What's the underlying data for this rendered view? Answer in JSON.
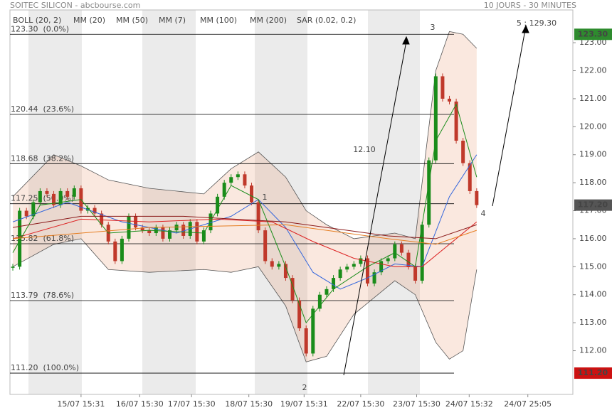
{
  "chart_data": {
    "type": "candlestick",
    "title": "SOITEC SILICON - abcbourse.com",
    "subtitle": "10 JOURS - 30 MINUTES",
    "xlim": [
      -0.42,
      82.1
    ],
    "ylim": [
      110.44,
      124.17
    ],
    "yticks": [
      {
        "value": 112,
        "label": "112.00"
      },
      {
        "value": 113,
        "label": "113.00"
      },
      {
        "value": 114,
        "label": "114.00"
      },
      {
        "value": 115,
        "label": "115.00"
      },
      {
        "value": 116,
        "label": "116.00"
      },
      {
        "value": 117,
        "label": "117.00"
      },
      {
        "value": 118,
        "label": "118.00"
      },
      {
        "value": 119,
        "label": "119.00"
      },
      {
        "value": 120,
        "label": "120.00"
      },
      {
        "value": 121,
        "label": "121.00"
      },
      {
        "value": 122,
        "label": "122.00"
      },
      {
        "value": 123,
        "label": "123.00"
      }
    ],
    "xticks": [
      {
        "value": 10,
        "label": "15/07 15:31"
      },
      {
        "value": 18.6,
        "label": "16/07 15:30"
      },
      {
        "value": 26.2,
        "label": "17/07 15:30"
      },
      {
        "value": 34.6,
        "label": "18/07 15:30"
      },
      {
        "value": 42.7,
        "label": "19/07 15:31"
      },
      {
        "value": 51,
        "label": "22/07 15:30"
      },
      {
        "value": 59.2,
        "label": "23/07 15:30"
      },
      {
        "value": 66.9,
        "label": "24/07 15:32"
      },
      {
        "value": 75.5,
        "label": "24/07 25:05"
      }
    ],
    "up_color": "#1a8c1a",
    "down_color": "#c0392b",
    "closes": [
      115.0,
      117.0,
      116.8,
      117.3,
      117.7,
      117.6,
      117.2,
      117.7,
      117.5,
      117.8,
      117.0,
      117.1,
      116.9,
      116.5,
      115.9,
      115.2,
      116.0,
      116.8,
      116.4,
      116.3,
      116.2,
      116.4,
      116.0,
      116.3,
      116.5,
      116.1,
      116.6,
      115.9,
      116.3,
      116.9,
      117.5,
      118.0,
      118.2,
      118.3,
      117.9,
      117.3,
      116.3,
      115.2,
      115.0,
      115.1,
      114.6,
      113.8,
      112.8,
      111.9,
      113.5,
      114.0,
      114.2,
      114.6,
      114.9,
      115.0,
      115.1,
      115.3,
      114.4,
      114.8,
      115.2,
      115.3,
      115.8,
      115.5,
      115.0,
      114.5,
      116.5,
      118.8,
      121.8,
      121.0,
      120.9,
      119.5,
      118.7,
      117.7,
      117.2
    ],
    "bollinger": {
      "name": "BOLL (20, 2)",
      "color": "#555555",
      "x": [
        0,
        6,
        10,
        14,
        20,
        28,
        32,
        36,
        40,
        43,
        46,
        50,
        56,
        59,
        62,
        64,
        66,
        68
      ],
      "upper": [
        117.5,
        119.0,
        118.6,
        118.1,
        117.8,
        117.6,
        118.5,
        119.1,
        118.2,
        117.0,
        116.5,
        116.0,
        116.2,
        116.0,
        122.0,
        123.4,
        123.3,
        122.8
      ],
      "lower": [
        115.0,
        115.8,
        116.0,
        114.9,
        114.8,
        114.9,
        114.8,
        115.0,
        113.6,
        111.6,
        111.8,
        113.3,
        114.5,
        114.0,
        112.3,
        111.7,
        112.0,
        114.9
      ]
    },
    "series": [
      {
        "name": "MM (20)",
        "color": "#3366dd",
        "x": [
          0,
          8,
          16,
          24,
          32,
          36,
          40,
          44,
          48,
          52,
          56,
          60,
          64,
          68
        ],
        "values": [
          116.6,
          117.3,
          116.6,
          116.2,
          116.8,
          117.4,
          116.4,
          114.8,
          114.2,
          114.6,
          115.1,
          115.0,
          117.5,
          119.0
        ]
      },
      {
        "name": "MM (50)",
        "color": "#dd2222",
        "x": [
          0,
          10,
          20,
          30,
          38,
          44,
          50,
          56,
          60,
          64,
          68
        ],
        "values": [
          116.0,
          116.7,
          116.6,
          116.7,
          116.6,
          115.9,
          115.3,
          115.0,
          115.0,
          115.8,
          116.6
        ]
      },
      {
        "name": "MM (7)",
        "color": "#1a8c1a",
        "x": [
          0,
          4,
          10,
          14,
          20,
          28,
          32,
          36,
          40,
          43,
          47,
          52,
          56,
          59,
          62,
          65,
          68
        ],
        "values": [
          115.5,
          117.2,
          117.4,
          116.2,
          116.3,
          116.2,
          117.9,
          117.4,
          115.0,
          113.0,
          114.2,
          115.0,
          115.5,
          115.0,
          119.5,
          120.8,
          118.2
        ]
      },
      {
        "name": "MM (100)",
        "color": "#e67e22",
        "x": [
          0,
          20,
          40,
          55,
          62,
          68
        ],
        "values": [
          116.0,
          116.4,
          116.5,
          116.0,
          115.8,
          116.3
        ]
      },
      {
        "name": "MM (200)",
        "color": "#8b1a1a",
        "x": [
          0,
          10,
          25,
          40,
          55,
          62,
          68
        ],
        "values": [
          116.4,
          116.8,
          116.8,
          116.6,
          116.1,
          116.0,
          116.5
        ]
      },
      {
        "name": "SAR (0.02, 0.2)",
        "color": "#cc0000"
      }
    ],
    "fib_levels": [
      {
        "value": 123.3,
        "label": "123.30  (0.0%)"
      },
      {
        "value": 120.44,
        "label": "120.44  (23.6%)"
      },
      {
        "value": 118.68,
        "label": "118.68  (38.2%)"
      },
      {
        "value": 117.25,
        "label": "117.25  (50.0%)"
      },
      {
        "value": 115.82,
        "label": "115.82  (61.8%)"
      },
      {
        "value": 113.79,
        "label": "113.79  (78.6%)"
      },
      {
        "value": 111.2,
        "label": "111.20  (100.0%)"
      }
    ],
    "price_tags": [
      {
        "value": 123.3,
        "label": "123.30",
        "color": "#2e8b2e"
      },
      {
        "value": 117.2,
        "label": "117.20",
        "color": "#555555"
      },
      {
        "value": 111.2,
        "label": "111.20",
        "color": "#cc1111"
      }
    ],
    "annotations": [
      "1",
      "2",
      "3",
      "4",
      "12.10",
      "5 : 129.30"
    ]
  }
}
